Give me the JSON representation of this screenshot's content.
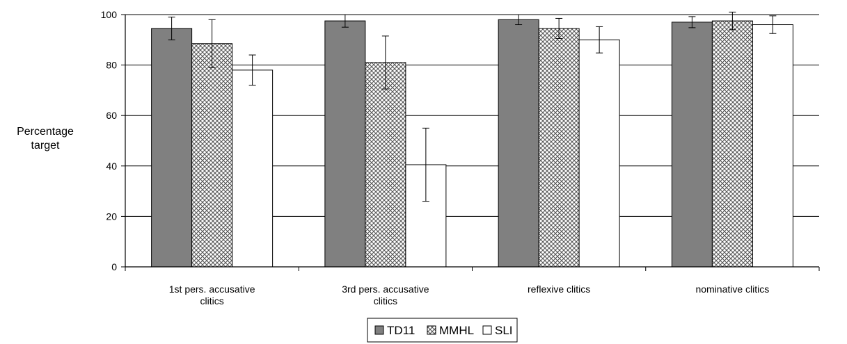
{
  "chart_data": {
    "type": "bar",
    "title": "",
    "ylabel": [
      "Percentage",
      "target"
    ],
    "xlabel": "",
    "ylim": [
      0,
      100
    ],
    "yticks": [
      0,
      20,
      40,
      60,
      80,
      100
    ],
    "grid": true,
    "legend_position": "bottom",
    "categories": [
      [
        "1st pers. accusative",
        "clitics"
      ],
      [
        "3rd pers. accusative",
        "clitics"
      ],
      [
        "reflexive clitics"
      ],
      [
        "nominative clitics"
      ]
    ],
    "series": [
      {
        "name": "TD11",
        "values": [
          94.5,
          97.5,
          98,
          97
        ],
        "error": [
          4.5,
          2.5,
          2,
          2.2
        ],
        "color": "#808080",
        "pattern": "solid"
      },
      {
        "name": "MMHL",
        "values": [
          88.5,
          81,
          94.5,
          97.5
        ],
        "error": [
          9.5,
          10.5,
          4,
          3.5
        ],
        "color": "#d9d9d9",
        "pattern": "crosshatch"
      },
      {
        "name": "SLI",
        "values": [
          78,
          40.5,
          90,
          96
        ],
        "error": [
          6,
          14.5,
          5.2,
          3.5
        ],
        "color": "#ffffff",
        "pattern": "none"
      }
    ]
  }
}
